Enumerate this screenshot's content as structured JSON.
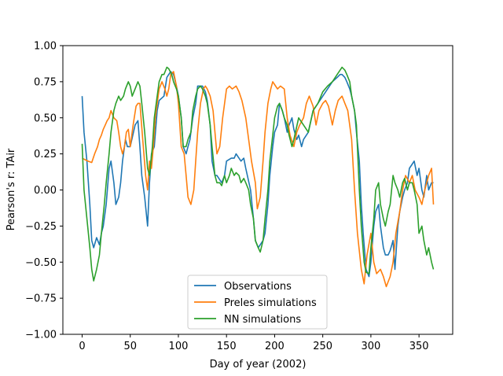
{
  "chart_data": {
    "type": "line",
    "xlabel": "Day of year (2002)",
    "ylabel": "Pearson's r: TAir",
    "xlim": [
      -20,
      385
    ],
    "ylim": [
      -1.0,
      1.0
    ],
    "xticks": [
      0,
      50,
      100,
      150,
      200,
      250,
      300,
      350
    ],
    "yticks": [
      -1.0,
      -0.75,
      -0.5,
      -0.25,
      0.0,
      0.25,
      0.5,
      0.75,
      1.0
    ],
    "ytick_labels": [
      "−1.00",
      "−0.75",
      "−0.50",
      "−0.25",
      "0.00",
      "0.25",
      "0.50",
      "0.75",
      "1.00"
    ],
    "grid": false,
    "legend_position": "lower-center",
    "series": [
      {
        "name": "Observations",
        "color": "#1f77b4",
        "x": [
          0,
          2,
          5,
          8,
          10,
          12,
          15,
          18,
          20,
          22,
          25,
          28,
          30,
          33,
          35,
          38,
          40,
          42,
          45,
          47,
          50,
          55,
          58,
          60,
          62,
          65,
          68,
          70,
          72,
          75,
          78,
          80,
          85,
          88,
          90,
          92,
          95,
          98,
          100,
          103,
          105,
          108,
          110,
          112,
          115,
          118,
          120,
          125,
          128,
          130,
          133,
          135,
          138,
          140,
          145,
          148,
          150,
          155,
          158,
          160,
          165,
          168,
          170,
          175,
          178,
          180,
          183,
          185,
          188,
          190,
          193,
          195,
          198,
          200,
          203,
          205,
          208,
          210,
          213,
          215,
          218,
          220,
          223,
          225,
          228,
          230,
          235,
          240,
          245,
          250,
          255,
          260,
          265,
          268,
          270,
          273,
          275,
          278,
          280,
          283,
          285,
          288,
          290,
          292,
          295,
          298,
          300,
          303,
          305,
          308,
          310,
          313,
          315,
          318,
          320,
          323,
          325,
          328,
          330,
          333,
          335,
          338,
          340,
          343,
          345,
          348,
          350,
          353,
          355,
          358,
          360,
          363,
          365
        ],
        "y": [
          0.65,
          0.4,
          0.2,
          -0.1,
          -0.35,
          -0.4,
          -0.33,
          -0.38,
          -0.3,
          -0.25,
          -0.1,
          0.15,
          0.2,
          0.05,
          -0.1,
          -0.05,
          0.05,
          0.2,
          0.35,
          0.3,
          0.3,
          0.45,
          0.48,
          0.3,
          0.1,
          -0.05,
          -0.25,
          0.05,
          0.25,
          0.3,
          0.55,
          0.62,
          0.65,
          0.78,
          0.8,
          0.82,
          0.8,
          0.72,
          0.65,
          0.5,
          0.3,
          0.25,
          0.3,
          0.35,
          0.5,
          0.6,
          0.72,
          0.72,
          0.68,
          0.62,
          0.45,
          0.2,
          0.1,
          0.1,
          0.05,
          0.1,
          0.2,
          0.22,
          0.22,
          0.25,
          0.2,
          0.22,
          0.15,
          0.0,
          -0.2,
          -0.35,
          -0.4,
          -0.38,
          -0.35,
          -0.3,
          -0.1,
          0.1,
          0.3,
          0.4,
          0.45,
          0.6,
          0.55,
          0.5,
          0.4,
          0.45,
          0.5,
          0.42,
          0.35,
          0.38,
          0.3,
          0.35,
          0.4,
          0.55,
          0.6,
          0.65,
          0.7,
          0.75,
          0.78,
          0.8,
          0.8,
          0.78,
          0.75,
          0.7,
          0.65,
          0.55,
          0.4,
          0.2,
          -0.1,
          -0.3,
          -0.55,
          -0.6,
          -0.5,
          -0.25,
          -0.15,
          -0.1,
          -0.25,
          -0.4,
          -0.45,
          -0.45,
          -0.42,
          -0.35,
          -0.55,
          -0.25,
          -0.15,
          -0.05,
          0.0,
          0.05,
          0.15,
          0.18,
          0.2,
          0.1,
          0.15,
          0.0,
          -0.05,
          0.1,
          0.0,
          0.05,
          0.05
        ]
      },
      {
        "name": "Preles simulations",
        "color": "#ff7f0e",
        "x": [
          0,
          3,
          6,
          10,
          13,
          16,
          18,
          20,
          22,
          24,
          26,
          28,
          30,
          33,
          36,
          38,
          40,
          42,
          44,
          46,
          48,
          50,
          53,
          56,
          58,
          60,
          63,
          66,
          68,
          70,
          72,
          74,
          76,
          78,
          80,
          83,
          86,
          88,
          90,
          92,
          95,
          98,
          100,
          103,
          106,
          108,
          110,
          113,
          116,
          118,
          120,
          123,
          126,
          128,
          130,
          133,
          136,
          138,
          140,
          143,
          146,
          150,
          153,
          156,
          160,
          163,
          166,
          170,
          173,
          176,
          180,
          182,
          185,
          188,
          190,
          193,
          196,
          198,
          200,
          203,
          206,
          210,
          213,
          216,
          220,
          223,
          226,
          230,
          233,
          236,
          240,
          243,
          246,
          250,
          253,
          256,
          260,
          263,
          266,
          270,
          273,
          276,
          280,
          283,
          286,
          290,
          293,
          296,
          300,
          303,
          306,
          310,
          313,
          316,
          320,
          323,
          326,
          330,
          333,
          336,
          340,
          343,
          346,
          350,
          353,
          356,
          360,
          363,
          365
        ],
        "y": [
          0.22,
          0.21,
          0.2,
          0.19,
          0.25,
          0.3,
          0.35,
          0.38,
          0.42,
          0.45,
          0.48,
          0.5,
          0.55,
          0.5,
          0.48,
          0.4,
          0.3,
          0.25,
          0.3,
          0.4,
          0.42,
          0.3,
          0.45,
          0.58,
          0.6,
          0.6,
          0.35,
          0.1,
          0.0,
          0.2,
          0.15,
          0.3,
          0.5,
          0.6,
          0.7,
          0.75,
          0.7,
          0.65,
          0.7,
          0.8,
          0.82,
          0.72,
          0.6,
          0.3,
          0.25,
          0.1,
          -0.05,
          -0.1,
          0.0,
          0.2,
          0.4,
          0.6,
          0.7,
          0.72,
          0.7,
          0.65,
          0.55,
          0.4,
          0.25,
          0.3,
          0.5,
          0.7,
          0.72,
          0.7,
          0.72,
          0.68,
          0.62,
          0.5,
          0.35,
          0.2,
          0.05,
          -0.13,
          -0.05,
          0.2,
          0.4,
          0.6,
          0.7,
          0.75,
          0.73,
          0.7,
          0.72,
          0.7,
          0.5,
          0.38,
          0.3,
          0.4,
          0.45,
          0.5,
          0.6,
          0.65,
          0.58,
          0.45,
          0.55,
          0.6,
          0.62,
          0.58,
          0.45,
          0.55,
          0.62,
          0.65,
          0.6,
          0.55,
          0.35,
          0.0,
          -0.3,
          -0.55,
          -0.65,
          -0.45,
          -0.3,
          -0.5,
          -0.58,
          -0.55,
          -0.6,
          -0.67,
          -0.6,
          -0.5,
          -0.3,
          -0.15,
          0.0,
          0.1,
          0.05,
          0.1,
          0.0,
          -0.05,
          -0.1,
          0.0,
          0.1,
          0.15,
          -0.1
        ]
      },
      {
        "name": "NN simulations",
        "color": "#2ca02c",
        "x": [
          0,
          2,
          5,
          8,
          10,
          12,
          15,
          18,
          20,
          23,
          25,
          28,
          30,
          33,
          35,
          38,
          40,
          43,
          45,
          48,
          50,
          52,
          55,
          58,
          60,
          62,
          65,
          68,
          70,
          73,
          75,
          78,
          80,
          83,
          85,
          88,
          90,
          93,
          95,
          98,
          100,
          103,
          105,
          108,
          110,
          113,
          115,
          118,
          120,
          123,
          125,
          128,
          130,
          133,
          135,
          138,
          140,
          143,
          145,
          148,
          150,
          153,
          155,
          158,
          160,
          163,
          165,
          168,
          170,
          173,
          175,
          178,
          180,
          183,
          185,
          188,
          190,
          193,
          195,
          198,
          200,
          203,
          205,
          208,
          210,
          213,
          215,
          218,
          220,
          225,
          230,
          235,
          240,
          245,
          250,
          255,
          260,
          265,
          268,
          270,
          273,
          275,
          278,
          280,
          283,
          285,
          288,
          290,
          293,
          295,
          298,
          300,
          303,
          305,
          308,
          310,
          313,
          315,
          318,
          320,
          323,
          325,
          328,
          330,
          333,
          335,
          338,
          340,
          343,
          345,
          348,
          350,
          353,
          355,
          358,
          360,
          363,
          365
        ],
        "y": [
          0.32,
          0.0,
          -0.2,
          -0.4,
          -0.55,
          -0.63,
          -0.55,
          -0.45,
          -0.3,
          -0.1,
          0.05,
          0.25,
          0.4,
          0.55,
          0.6,
          0.65,
          0.62,
          0.65,
          0.7,
          0.75,
          0.72,
          0.65,
          0.7,
          0.75,
          0.72,
          0.6,
          0.4,
          0.15,
          0.1,
          0.3,
          0.5,
          0.65,
          0.75,
          0.8,
          0.8,
          0.85,
          0.84,
          0.8,
          0.75,
          0.7,
          0.65,
          0.5,
          0.3,
          0.3,
          0.35,
          0.4,
          0.55,
          0.65,
          0.7,
          0.72,
          0.7,
          0.65,
          0.6,
          0.45,
          0.3,
          0.1,
          0.05,
          0.05,
          0.03,
          0.1,
          0.05,
          0.1,
          0.15,
          0.1,
          0.12,
          0.1,
          0.05,
          0.08,
          0.05,
          0.0,
          -0.1,
          -0.2,
          -0.35,
          -0.4,
          -0.43,
          -0.35,
          -0.2,
          0.0,
          0.2,
          0.38,
          0.5,
          0.58,
          0.6,
          0.55,
          0.5,
          0.45,
          0.38,
          0.3,
          0.35,
          0.5,
          0.45,
          0.4,
          0.55,
          0.6,
          0.68,
          0.72,
          0.75,
          0.8,
          0.83,
          0.85,
          0.83,
          0.8,
          0.75,
          0.65,
          0.55,
          0.45,
          0.0,
          -0.25,
          -0.5,
          -0.57,
          -0.58,
          -0.4,
          -0.2,
          0.0,
          0.05,
          -0.1,
          -0.2,
          -0.25,
          -0.15,
          -0.1,
          0.1,
          0.05,
          0.0,
          -0.05,
          0.05,
          0.08,
          0.0,
          0.05,
          0.05,
          0.0,
          -0.1,
          -0.3,
          -0.25,
          -0.35,
          -0.45,
          -0.4,
          -0.5,
          -0.55
        ]
      }
    ]
  }
}
